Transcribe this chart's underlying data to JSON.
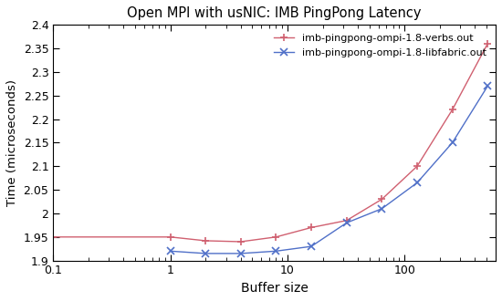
{
  "title": "Open MPI with usNIC: IMB PingPong Latency",
  "xlabel": "Buffer size",
  "ylabel": "Time (microseconds)",
  "xlim": [
    0.1,
    600
  ],
  "ylim": [
    1.9,
    2.4
  ],
  "verbs": {
    "label": "imb-pingpong-ompi-1.8-verbs.out",
    "color": "#d06070",
    "marker": "+",
    "x": [
      0.1,
      1,
      2,
      4,
      8,
      16,
      32,
      64,
      128,
      256,
      512
    ],
    "y": [
      1.95,
      1.95,
      1.942,
      1.94,
      1.95,
      1.97,
      1.985,
      2.03,
      2.1,
      2.22,
      2.36
    ]
  },
  "libfabric": {
    "label": "imb-pingpong-ompi-1.8-libfabric.out",
    "color": "#5070c8",
    "marker": "x",
    "x": [
      1,
      2,
      4,
      8,
      16,
      32,
      64,
      128,
      256,
      512
    ],
    "y": [
      1.92,
      1.915,
      1.915,
      1.92,
      1.93,
      1.98,
      2.01,
      2.065,
      2.15,
      2.27
    ]
  },
  "yticks": [
    1.9,
    1.95,
    2.0,
    2.05,
    2.1,
    2.15,
    2.2,
    2.25,
    2.3,
    2.35,
    2.4
  ],
  "xticks": [
    0.1,
    1,
    10,
    100
  ],
  "background_color": "#ffffff"
}
